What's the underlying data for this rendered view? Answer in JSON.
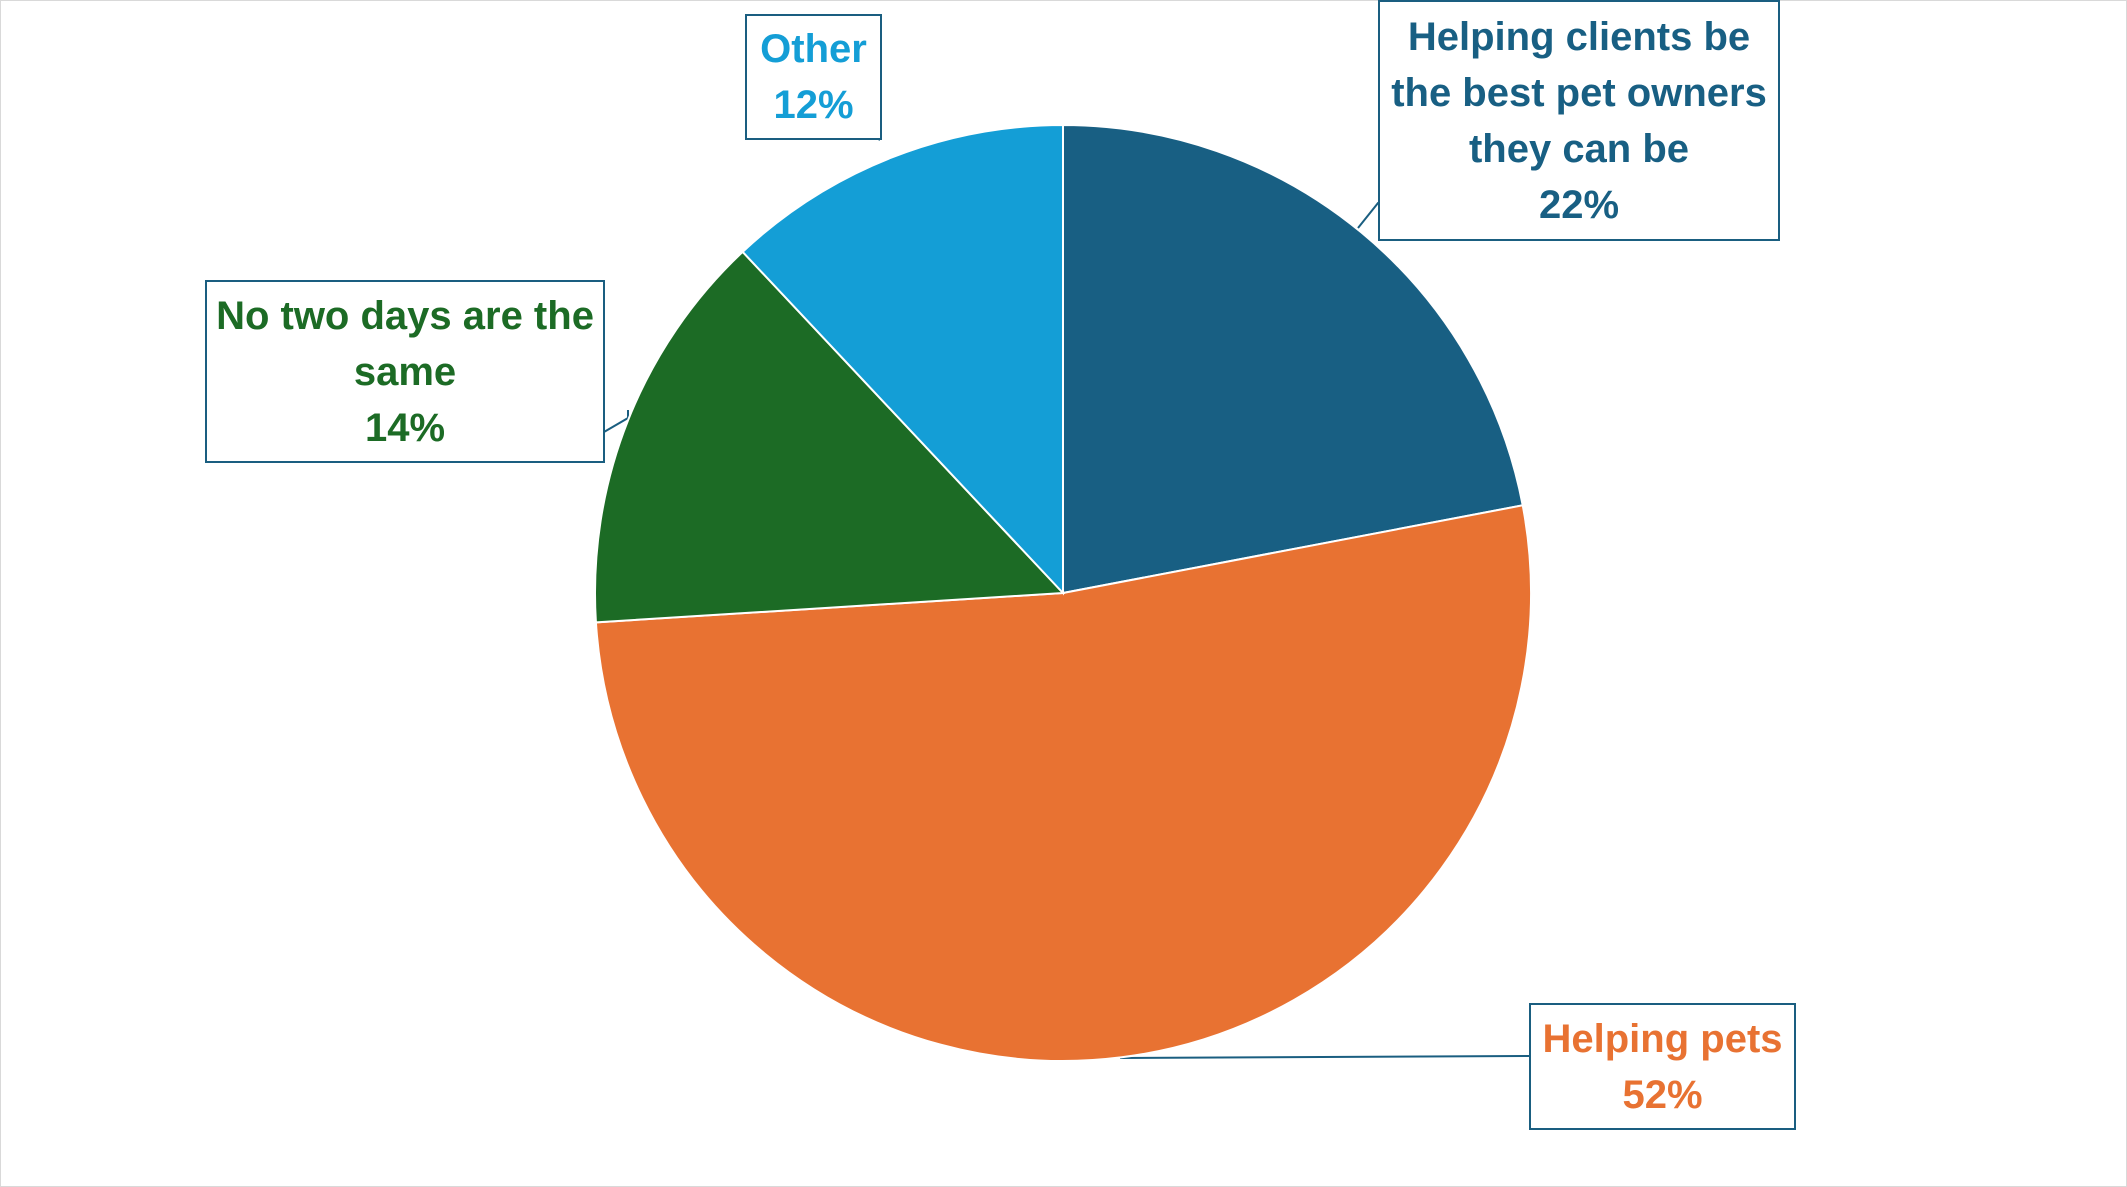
{
  "chart_data": {
    "type": "pie",
    "title": "",
    "start_angle_deg": 0,
    "direction": "clockwise",
    "legend": "none",
    "slices": [
      {
        "name": "Helping clients be the best pet owners they can be",
        "value": 22,
        "label": "22%",
        "color": "#185f83"
      },
      {
        "name": "Helping pets",
        "value": 52,
        "label": "52%",
        "color": "#e87232"
      },
      {
        "name": "No two days are the same",
        "value": 14,
        "label": "14%",
        "color": "#1c6b25"
      },
      {
        "name": "Other",
        "value": 12,
        "label": "12%",
        "color": "#149ed6"
      }
    ],
    "label_text_colors": {
      "clients": "#185f83",
      "pets": "#e87232",
      "days": "#1c6b25",
      "other": "#149ed6"
    },
    "callout_border_color": "#1a5e80"
  },
  "labels": {
    "clients": {
      "line1": "Helping clients be",
      "line2": "the best pet owners",
      "line3": "they can be",
      "pct": "22%"
    },
    "pets": {
      "line1": "Helping pets",
      "pct": "52%"
    },
    "days": {
      "line1": "No two days are the",
      "line2": "same",
      "pct": "14%"
    },
    "other": {
      "line1": "Other",
      "pct": "12%"
    }
  }
}
